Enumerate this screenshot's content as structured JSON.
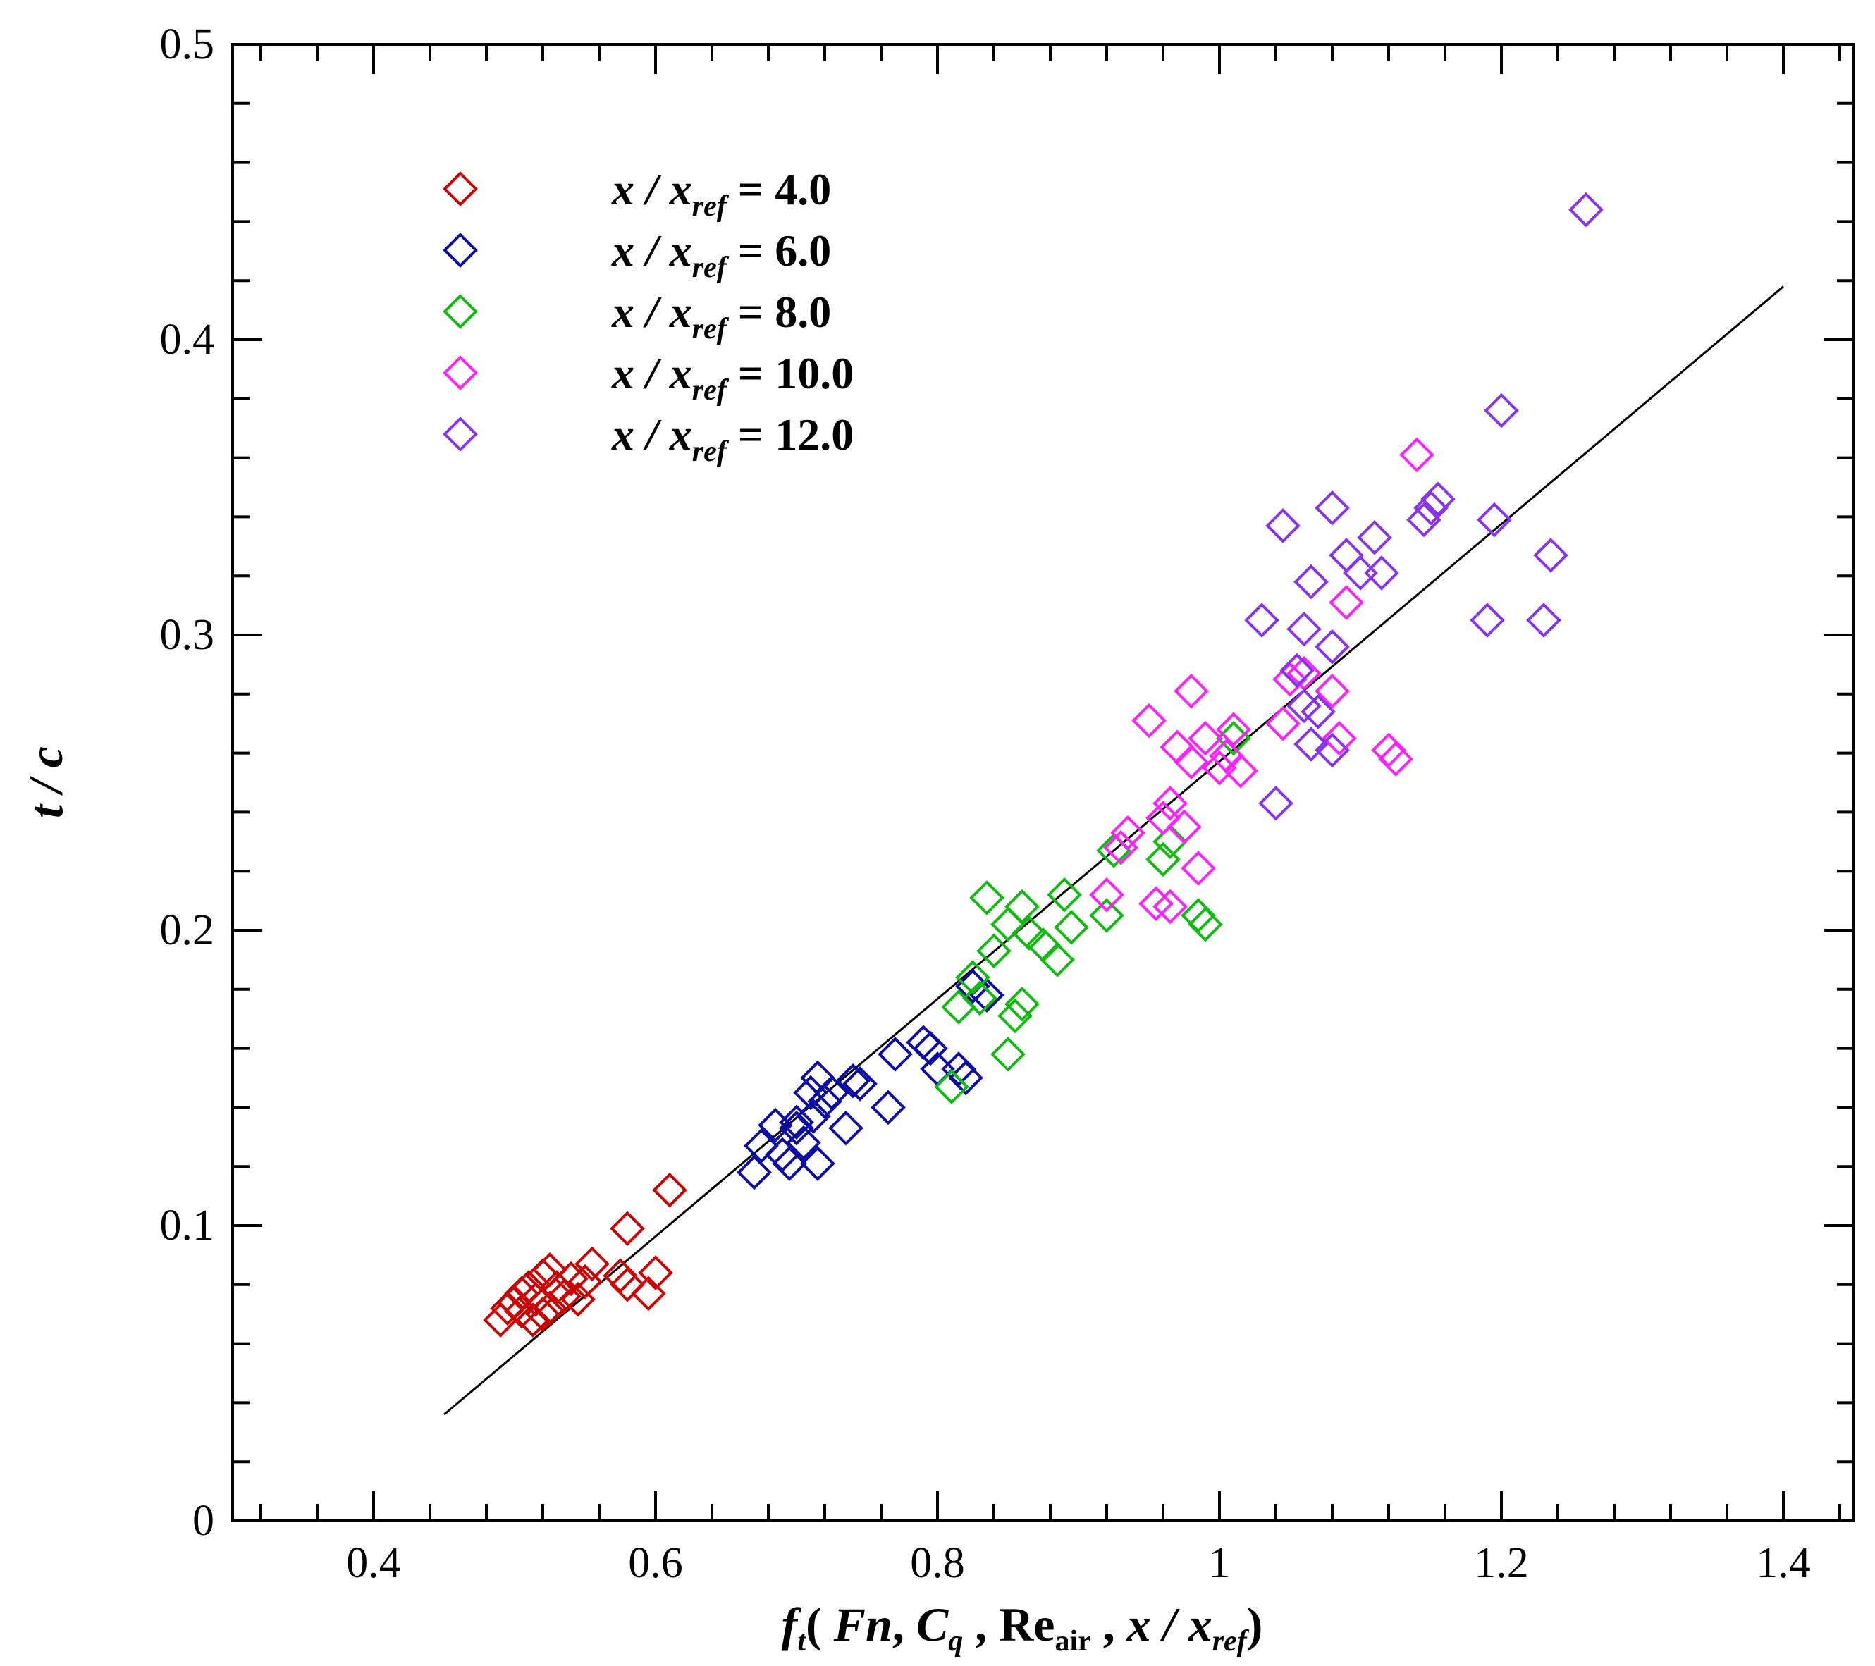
{
  "chart_data": {
    "type": "scatter",
    "title": "",
    "xlabel": {
      "f": "f",
      "f_sub": "t",
      "open": "( ",
      "fn": "Fn",
      "comma1": ", ",
      "c": "C",
      "c_sub": "q",
      "comma2": " , ",
      "re": "Re",
      "re_sub": "air",
      "comma3": " , ",
      "x": "x / x",
      "x_sub": "ref",
      "close": ")"
    },
    "ylabel": "t / c",
    "xlim": [
      0.3,
      1.45
    ],
    "ylim": [
      0,
      0.5
    ],
    "xticks": [
      0.4,
      0.6,
      0.8,
      1.0,
      1.2,
      1.4
    ],
    "xtick_labels": [
      "0.4",
      "0.6",
      "0.8",
      "1",
      "1.2",
      "1.4"
    ],
    "yticks": [
      0,
      0.1,
      0.2,
      0.3,
      0.4,
      0.5
    ],
    "ytick_labels": [
      "0",
      "0.1",
      "0.2",
      "0.3",
      "0.4",
      "0.5"
    ],
    "x_minor_step": 0.04,
    "y_minor_step": 0.02,
    "legend_position": "top-left",
    "marker": "open-diamond",
    "fit_line": {
      "x": [
        0.45,
        1.4
      ],
      "y": [
        0.036,
        0.418
      ],
      "color": "#000000"
    },
    "series": [
      {
        "name": "x/x_ref = 4.0",
        "label_prefix": "x / x",
        "label_sub": "ref",
        "label_value": " = 4.0",
        "color": "#cc0000",
        "points": [
          [
            0.49,
            0.068
          ],
          [
            0.495,
            0.072
          ],
          [
            0.5,
            0.074
          ],
          [
            0.505,
            0.077
          ],
          [
            0.51,
            0.079
          ],
          [
            0.505,
            0.071
          ],
          [
            0.515,
            0.075
          ],
          [
            0.52,
            0.083
          ],
          [
            0.52,
            0.07
          ],
          [
            0.525,
            0.072
          ],
          [
            0.525,
            0.085
          ],
          [
            0.53,
            0.079
          ],
          [
            0.535,
            0.076
          ],
          [
            0.54,
            0.082
          ],
          [
            0.545,
            0.075
          ],
          [
            0.55,
            0.081
          ],
          [
            0.555,
            0.087
          ],
          [
            0.575,
            0.083
          ],
          [
            0.58,
            0.08
          ],
          [
            0.58,
            0.099
          ],
          [
            0.595,
            0.077
          ],
          [
            0.6,
            0.084
          ],
          [
            0.61,
            0.112
          ],
          [
            0.513,
            0.068
          ]
        ]
      },
      {
        "name": "x/x_ref = 6.0",
        "label_prefix": "x / x",
        "label_sub": "ref",
        "label_value": " = 6.0",
        "color": "#0b0ba8",
        "points": [
          [
            0.67,
            0.118
          ],
          [
            0.675,
            0.127
          ],
          [
            0.685,
            0.134
          ],
          [
            0.69,
            0.124
          ],
          [
            0.695,
            0.121
          ],
          [
            0.7,
            0.133
          ],
          [
            0.705,
            0.128
          ],
          [
            0.71,
            0.145
          ],
          [
            0.712,
            0.137
          ],
          [
            0.715,
            0.121
          ],
          [
            0.72,
            0.142
          ],
          [
            0.725,
            0.145
          ],
          [
            0.735,
            0.133
          ],
          [
            0.74,
            0.149
          ],
          [
            0.745,
            0.148
          ],
          [
            0.765,
            0.14
          ],
          [
            0.77,
            0.158
          ],
          [
            0.79,
            0.162
          ],
          [
            0.795,
            0.16
          ],
          [
            0.8,
            0.153
          ],
          [
            0.815,
            0.153
          ],
          [
            0.82,
            0.15
          ],
          [
            0.825,
            0.181
          ],
          [
            0.835,
            0.178
          ],
          [
            0.7,
            0.135
          ],
          [
            0.715,
            0.15
          ]
        ]
      },
      {
        "name": "x/x_ref = 8.0",
        "label_prefix": "x / x",
        "label_sub": "ref",
        "label_value": " = 8.0",
        "color": "#11bb11",
        "points": [
          [
            0.81,
            0.147
          ],
          [
            0.815,
            0.174
          ],
          [
            0.825,
            0.184
          ],
          [
            0.83,
            0.177
          ],
          [
            0.835,
            0.211
          ],
          [
            0.84,
            0.193
          ],
          [
            0.85,
            0.158
          ],
          [
            0.85,
            0.202
          ],
          [
            0.855,
            0.171
          ],
          [
            0.86,
            0.175
          ],
          [
            0.86,
            0.208
          ],
          [
            0.865,
            0.199
          ],
          [
            0.875,
            0.195
          ],
          [
            0.885,
            0.19
          ],
          [
            0.89,
            0.212
          ],
          [
            0.895,
            0.201
          ],
          [
            0.92,
            0.205
          ],
          [
            0.925,
            0.227
          ],
          [
            0.955,
            0.209
          ],
          [
            0.96,
            0.224
          ],
          [
            0.965,
            0.23
          ],
          [
            0.985,
            0.205
          ],
          [
            0.99,
            0.202
          ],
          [
            1.01,
            0.265
          ]
        ]
      },
      {
        "name": "x/x_ref = 10.0",
        "label_prefix": "x / x",
        "label_sub": "ref",
        "label_value": " = 10.0",
        "color": "#ff22ff",
        "points": [
          [
            0.92,
            0.212
          ],
          [
            0.93,
            0.228
          ],
          [
            0.935,
            0.233
          ],
          [
            0.95,
            0.271
          ],
          [
            0.955,
            0.209
          ],
          [
            0.96,
            0.238
          ],
          [
            0.965,
            0.208
          ],
          [
            0.965,
            0.243
          ],
          [
            0.97,
            0.262
          ],
          [
            0.975,
            0.235
          ],
          [
            0.98,
            0.281
          ],
          [
            0.98,
            0.257
          ],
          [
            0.985,
            0.221
          ],
          [
            0.99,
            0.265
          ],
          [
            1.0,
            0.255
          ],
          [
            1.005,
            0.259
          ],
          [
            1.01,
            0.268
          ],
          [
            1.015,
            0.254
          ],
          [
            1.045,
            0.27
          ],
          [
            1.05,
            0.285
          ],
          [
            1.06,
            0.287
          ],
          [
            1.08,
            0.281
          ],
          [
            1.085,
            0.265
          ],
          [
            1.09,
            0.311
          ],
          [
            1.12,
            0.261
          ],
          [
            1.125,
            0.258
          ],
          [
            1.14,
            0.361
          ]
        ]
      },
      {
        "name": "x/x_ref = 12.0",
        "label_prefix": "x / x",
        "label_sub": "ref",
        "label_value": " = 12.0",
        "color": "#8833ee",
        "points": [
          [
            1.03,
            0.305
          ],
          [
            1.04,
            0.243
          ],
          [
            1.045,
            0.337
          ],
          [
            1.055,
            0.288
          ],
          [
            1.06,
            0.302
          ],
          [
            1.06,
            0.276
          ],
          [
            1.065,
            0.263
          ],
          [
            1.065,
            0.318
          ],
          [
            1.07,
            0.274
          ],
          [
            1.08,
            0.261
          ],
          [
            1.08,
            0.296
          ],
          [
            1.08,
            0.343
          ],
          [
            1.09,
            0.327
          ],
          [
            1.1,
            0.321
          ],
          [
            1.11,
            0.333
          ],
          [
            1.115,
            0.321
          ],
          [
            1.145,
            0.339
          ],
          [
            1.15,
            0.343
          ],
          [
            1.155,
            0.346
          ],
          [
            1.19,
            0.305
          ],
          [
            1.195,
            0.339
          ],
          [
            1.2,
            0.376
          ],
          [
            1.23,
            0.305
          ],
          [
            1.235,
            0.327
          ],
          [
            1.26,
            0.444
          ]
        ]
      }
    ]
  }
}
